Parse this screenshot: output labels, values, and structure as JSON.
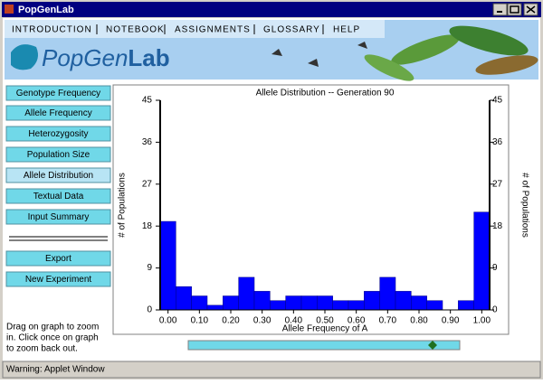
{
  "window": {
    "title": "PopGenLab"
  },
  "menu": [
    "INTRODUCTION",
    "NOTEBOOK",
    "ASSIGNMENTS",
    "GLOSSARY",
    "HELP"
  ],
  "logo": {
    "first": "PopGen",
    "second": "Lab"
  },
  "buttons": [
    "Genotype Frequency",
    "Allele Frequency",
    "Heterozygosity",
    "Population Size",
    "Allele Distribution",
    "Textual Data",
    "Input Summary",
    "Export",
    "New Experiment"
  ],
  "hint": [
    "Drag on graph to zoom",
    "in. Click once on graph",
    "to zoom back out."
  ],
  "status": "Warning: Applet Window",
  "chart_data": {
    "type": "histogram",
    "title": "Allele Distribution -- Generation 90",
    "bins": [
      -0.025,
      0.025,
      0.075,
      0.125,
      0.175,
      0.225,
      0.275,
      0.325,
      0.375,
      0.425,
      0.475,
      0.525,
      0.575,
      0.625,
      0.675,
      0.725,
      0.775,
      0.825,
      0.875,
      0.925,
      0.975,
      1.025
    ],
    "values": [
      19,
      5,
      3,
      1,
      3,
      7,
      4,
      2,
      3,
      3,
      3,
      2,
      2,
      4,
      7,
      4,
      3,
      2,
      0,
      2,
      21
    ],
    "color": "#0000ff",
    "xlim": [
      -0.025,
      1.025
    ],
    "ylim": [
      0,
      45
    ],
    "xticks": [
      {
        "value": 0,
        "label": "0.00"
      },
      {
        "value": 0.1,
        "label": "0.10"
      },
      {
        "value": 0.2,
        "label": "0.20"
      },
      {
        "value": 0.3,
        "label": "0.30"
      },
      {
        "value": 0.4,
        "label": "0.40"
      },
      {
        "value": 0.5,
        "label": "0.50"
      },
      {
        "value": 0.6,
        "label": "0.60"
      },
      {
        "value": 0.7,
        "label": "0.70"
      },
      {
        "value": 0.8,
        "label": "0.80"
      },
      {
        "value": 0.9,
        "label": "0.90"
      },
      {
        "value": 1,
        "label": "1.00"
      }
    ],
    "yticks": [
      0,
      9,
      18,
      27,
      36,
      45
    ],
    "xlabel": "Allele Frequency of A",
    "ylabel": "# of Populations"
  }
}
